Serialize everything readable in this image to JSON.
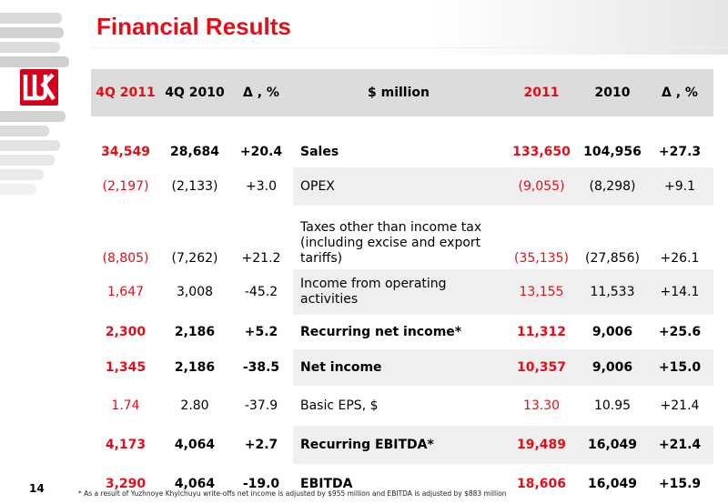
{
  "page": {
    "title": "Financial Results",
    "page_number": "14",
    "footnote": "* As a result of Yuzhnoye Khylchuyu write-offs net income is adjusted by $955 million and EBITDA is adjusted by $883 million"
  },
  "brand": {
    "accent_color": "#e10f19",
    "logo": "LUKOIL-logo"
  },
  "table": {
    "headers": [
      "4Q 2011",
      "4Q 2010",
      "Δ , %",
      "$ million",
      "2011",
      "2010",
      "Δ , %"
    ],
    "rows": [
      {
        "q4_2011": "34,549",
        "q4_2010": "28,684",
        "dq": "+20.4",
        "label": "Sales",
        "y2011": "133,650",
        "y2010": "104,956",
        "dy": "+27.3"
      },
      {
        "q4_2011": "(2,197)",
        "q4_2010": "(2,133)",
        "dq": "+3.0",
        "label": "OPEX",
        "y2011": "(9,055)",
        "y2010": "(8,298)",
        "dy": "+9.1"
      },
      {
        "q4_2011": "(8,805)",
        "q4_2010": "(7,262)",
        "dq": "+21.2",
        "label": "Taxes other than income tax (including excise and export tariffs)",
        "y2011": "(35,135)",
        "y2010": "(27,856)",
        "dy": "+26.1"
      },
      {
        "q4_2011": "1,647",
        "q4_2010": "3,008",
        "dq": "-45.2",
        "label": "Income from operating activities",
        "y2011": "13,155",
        "y2010": "11,533",
        "dy": "+14.1"
      },
      {
        "q4_2011": "2,300",
        "q4_2010": "2,186",
        "dq": "+5.2",
        "label": "Recurring net income*",
        "y2011": "11,312",
        "y2010": "9,006",
        "dy": "+25.6"
      },
      {
        "q4_2011": "1,345",
        "q4_2010": "2,186",
        "dq": "-38.5",
        "label": "Net income",
        "y2011": "10,357",
        "y2010": "9,006",
        "dy": "+15.0"
      },
      {
        "q4_2011": "1.74",
        "q4_2010": "2.80",
        "dq": "-37.9",
        "label": "Basic EPS, $",
        "y2011": "13.30",
        "y2010": "10.95",
        "dy": "+21.4"
      },
      {
        "q4_2011": "4,173",
        "q4_2010": "4,064",
        "dq": "+2.7",
        "label": "Recurring EBITDA*",
        "y2011": "19,489",
        "y2010": "16,049",
        "dy": "+21.4"
      },
      {
        "q4_2011": "3,290",
        "q4_2010": "4,064",
        "dq": "-19.0",
        "label": "EBITDA",
        "y2011": "18,606",
        "y2010": "16,049",
        "dy": "+15.9"
      }
    ]
  }
}
